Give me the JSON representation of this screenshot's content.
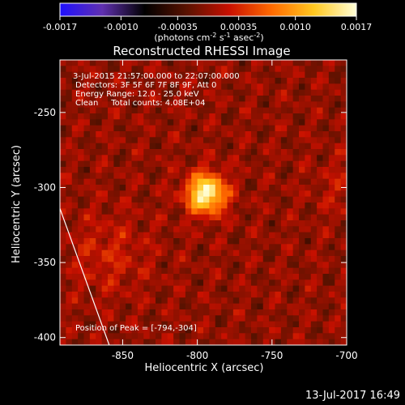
{
  "chart_data": {
    "type": "heatmap",
    "title": "Reconstructed RHESSI Image",
    "xlabel": "Heliocentric X (arcsec)",
    "ylabel": "Heliocentric Y (arcsec)",
    "xlim": [
      -892,
      -700
    ],
    "ylim": [
      -405,
      -215
    ],
    "x_ticks": [
      -850,
      -800,
      -750,
      -700
    ],
    "y_ticks": [
      -250,
      -300,
      -350,
      -400
    ],
    "colorbar": {
      "colors": [
        "#1f10ff",
        "#6030b0",
        "#000000",
        "#5a1200",
        "#c81000",
        "#ff6a00",
        "#ffc820",
        "#ffffd8"
      ],
      "ticks": [
        "-0.0017",
        "-0.0010",
        "-0.00035",
        "0.00035",
        "0.0010",
        "0.0017"
      ],
      "tick_values": [
        -0.0017,
        -0.001,
        -0.00035,
        0.00035,
        0.001,
        0.0017
      ],
      "min": -0.0017,
      "max": 0.0017,
      "units_main": "(photons cm",
      "units_exp1": "-2",
      "units_mid": " s",
      "units_exp2": "-1",
      "units_end": " asec",
      "units_exp3": "-2",
      "units_close": ")"
    },
    "annotations": [
      "3-Jul-2015 21:57:00.000 to 22:07:00.000",
      "Detectors: 3F 5F 6F 7F 8F 9F, Att 0",
      "Energy Range: 12.0 - 25.0 keV",
      "Clean     Total counts: 4.08E+04"
    ],
    "peak_label": "Position of Peak = [-794,-304]",
    "peak": {
      "x": -794,
      "y": -304,
      "value": 0.0017
    },
    "limb_line": [
      [
        -892,
        -314
      ],
      [
        -859,
        -405
      ]
    ],
    "grid": false
  },
  "footer": {
    "timestamp": "13-Jul-2017 16:49"
  }
}
